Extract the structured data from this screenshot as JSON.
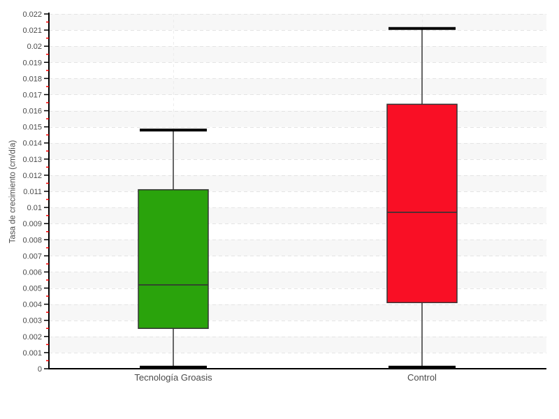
{
  "chart_data": {
    "type": "boxplot",
    "title": "",
    "xlabel": "",
    "ylabel": "Tasa de crecimiento (cm/día)",
    "ylim": [
      0,
      0.022
    ],
    "ytick_step": 0.001,
    "minor_tick_step": 0.0005,
    "ytick_labels": [
      "0",
      "0.001",
      "0.002",
      "0.003",
      "0.004",
      "0.005",
      "0.006",
      "0.007",
      "0.008",
      "0.009",
      "0.01",
      "0.011",
      "0.012",
      "0.013",
      "0.014",
      "0.015",
      "0.016",
      "0.017",
      "0.018",
      "0.019",
      "0.02",
      "0.021",
      "0.022"
    ],
    "categories": [
      "Tecnología Groasis",
      "Control"
    ],
    "series": [
      {
        "name": "Tecnología Groasis",
        "color": "#2aa30c",
        "whisker_min": 0.0001,
        "q1": 0.0025,
        "median": 0.0052,
        "q3": 0.0111,
        "whisker_max": 0.0148
      },
      {
        "name": "Control",
        "color": "#f90f25",
        "whisker_min": 0.0001,
        "q1": 0.0041,
        "median": 0.0097,
        "q3": 0.0164,
        "whisker_max": 0.0211
      }
    ],
    "legend": "none",
    "grid": {
      "horizontal_gridlines": "dashed",
      "vertical_gridlines_at_categories": "dashed",
      "alternating_horizontal_bands": true
    }
  },
  "style": {
    "background": "#ffffff",
    "band_color": "#f7f7f7",
    "h_grid_color": "#e4e4e4",
    "v_grid_color": "#ececec",
    "axis_color": "#000000",
    "major_tick_color": "#000000",
    "minor_tick_color": "#ff0000",
    "label_color": "#4a4a4a",
    "box_stroke_color": "#333333",
    "median_color": "#333333",
    "whisker_stem_color": "#666666",
    "whisker_cap_color": "#000000"
  }
}
